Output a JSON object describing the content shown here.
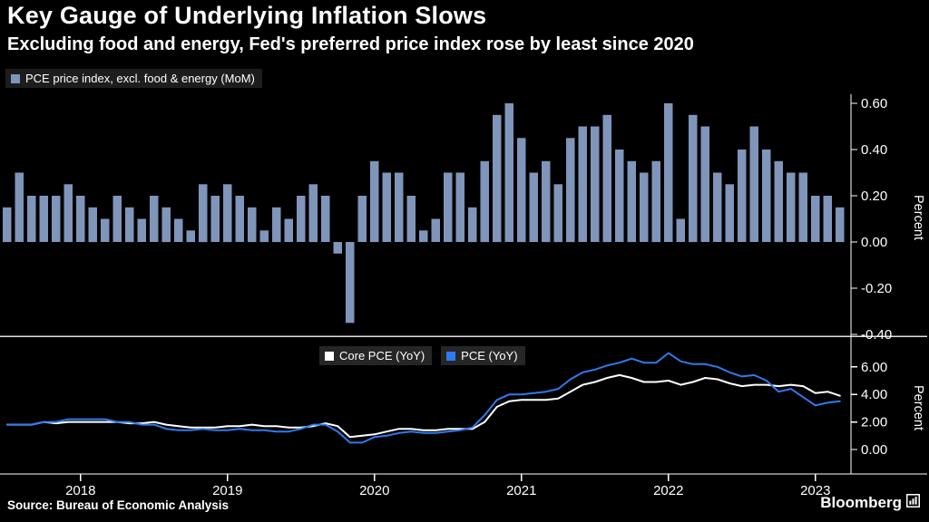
{
  "header": {
    "title": "Key Gauge of Underlying Inflation Slows",
    "subtitle": "Excluding food and energy, Fed's preferred price index rose by least since 2020"
  },
  "top_legend": {
    "label": "PCE price index, excl. food & energy (MoM)"
  },
  "bottom_legend": [
    {
      "label": "Core PCE (YoY)",
      "color": "#ffffff"
    },
    {
      "label": "PCE (YoY)",
      "color": "#2e7af0"
    }
  ],
  "footer": {
    "source": "Source: Bureau of Economic Analysis",
    "brand": "Bloomberg"
  },
  "colors": {
    "bar": "#8095ba",
    "core_line": "#ffffff",
    "pce_line": "#2e7af0",
    "axis": "#ffffff",
    "divider": "#e0e0e0"
  },
  "x_axis": {
    "start_month": "2017-12",
    "end_month": "2023-08",
    "frequency": "monthly",
    "year_ticks": [
      {
        "label": "2018",
        "month_index": 6
      },
      {
        "label": "2019",
        "month_index": 18
      },
      {
        "label": "2020",
        "month_index": 30
      },
      {
        "label": "2021",
        "month_index": 42
      },
      {
        "label": "2022",
        "month_index": 54
      },
      {
        "label": "2023",
        "month_index": 66
      }
    ]
  },
  "chart_data": [
    {
      "type": "bar",
      "title": "PCE price index, excl. food & energy (MoM)",
      "ylabel": "Percent",
      "ylim": [
        -0.45,
        0.65
      ],
      "yticks": [
        0.6,
        0.4,
        0.2,
        0.0,
        -0.2,
        -0.4
      ],
      "start_month": "2017-12",
      "values": [
        0.15,
        0.3,
        0.2,
        0.2,
        0.2,
        0.25,
        0.2,
        0.15,
        0.1,
        0.2,
        0.15,
        0.1,
        0.2,
        0.15,
        0.1,
        0.05,
        0.25,
        0.2,
        0.25,
        0.2,
        0.15,
        0.05,
        0.15,
        0.1,
        0.2,
        0.25,
        0.2,
        -0.05,
        -0.35,
        0.2,
        0.35,
        0.3,
        0.3,
        0.2,
        0.05,
        0.1,
        0.3,
        0.3,
        0.15,
        0.35,
        0.55,
        0.6,
        0.45,
        0.3,
        0.35,
        0.25,
        0.45,
        0.5,
        0.5,
        0.55,
        0.4,
        0.35,
        0.3,
        0.35,
        0.6,
        0.1,
        0.55,
        0.5,
        0.3,
        0.25,
        0.4,
        0.5,
        0.4,
        0.35,
        0.3,
        0.3,
        0.2,
        0.2,
        0.15
      ]
    },
    {
      "type": "line",
      "ylabel": "Percent",
      "ylim": [
        0,
        8
      ],
      "yticks": [
        6.0,
        4.0,
        2.0,
        0.0
      ],
      "start_month": "2017-12",
      "series": [
        {
          "name": "Core PCE (YoY)",
          "values": [
            1.8,
            1.8,
            1.8,
            2.0,
            1.9,
            2.0,
            2.0,
            2.0,
            2.0,
            2.0,
            1.9,
            1.9,
            2.0,
            1.8,
            1.7,
            1.6,
            1.6,
            1.6,
            1.7,
            1.7,
            1.8,
            1.7,
            1.7,
            1.6,
            1.6,
            1.7,
            1.9,
            1.7,
            0.9,
            1.0,
            1.1,
            1.3,
            1.5,
            1.5,
            1.4,
            1.4,
            1.5,
            1.5,
            1.5,
            2.0,
            3.1,
            3.5,
            3.6,
            3.6,
            3.6,
            3.7,
            4.2,
            4.7,
            4.9,
            5.2,
            5.4,
            5.2,
            4.9,
            4.9,
            5.0,
            4.7,
            4.9,
            5.2,
            5.1,
            4.8,
            4.6,
            4.7,
            4.7,
            4.6,
            4.7,
            4.6,
            4.1,
            4.2,
            3.9
          ]
        },
        {
          "name": "PCE (YoY)",
          "values": [
            1.8,
            1.8,
            1.8,
            2.0,
            2.0,
            2.2,
            2.2,
            2.2,
            2.2,
            2.0,
            2.0,
            1.8,
            1.8,
            1.5,
            1.4,
            1.4,
            1.5,
            1.4,
            1.4,
            1.5,
            1.4,
            1.4,
            1.3,
            1.3,
            1.5,
            1.8,
            1.8,
            1.3,
            0.5,
            0.5,
            0.9,
            1.0,
            1.2,
            1.3,
            1.2,
            1.2,
            1.3,
            1.4,
            1.6,
            2.5,
            3.6,
            4.0,
            4.0,
            4.1,
            4.2,
            4.4,
            5.1,
            5.6,
            5.8,
            6.1,
            6.3,
            6.6,
            6.3,
            6.3,
            7.0,
            6.4,
            6.2,
            6.2,
            6.0,
            5.6,
            5.3,
            5.4,
            5.0,
            4.2,
            4.4,
            3.8,
            3.2,
            3.4,
            3.5
          ]
        }
      ]
    }
  ]
}
